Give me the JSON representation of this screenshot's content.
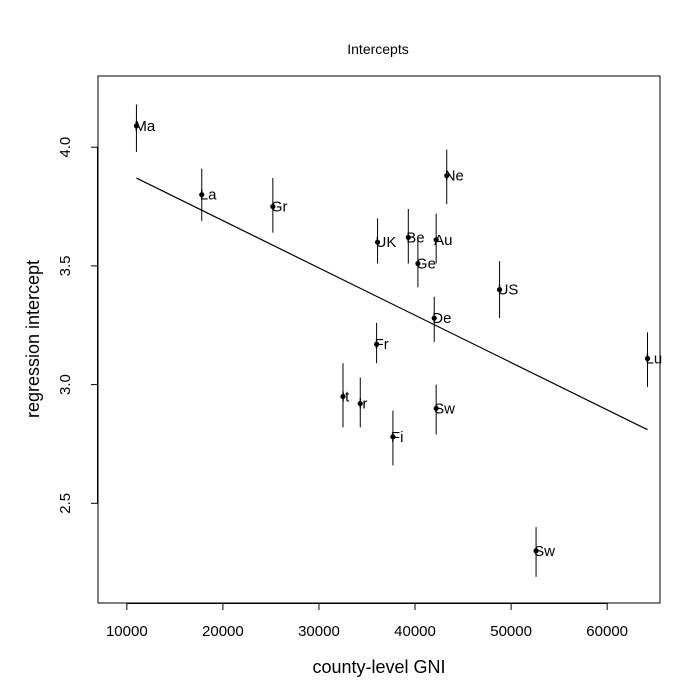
{
  "chart_data": {
    "type": "scatter",
    "title": "Intercepts",
    "xlabel": "county-level GNI",
    "ylabel": "regression intercept",
    "xlim": [
      7000,
      65500
    ],
    "ylim": [
      2.08,
      4.3
    ],
    "x_ticks": [
      10000,
      20000,
      30000,
      40000,
      50000,
      60000
    ],
    "y_ticks": [
      2.5,
      3.0,
      3.5,
      4.0
    ],
    "x_tick_labels": [
      "10000",
      "20000",
      "30000",
      "40000",
      "50000",
      "60000"
    ],
    "y_tick_labels": [
      "2.5",
      "3.0",
      "3.5",
      "4.0"
    ],
    "grid": false,
    "legend": "none",
    "points": [
      {
        "label": "Ma",
        "x": 11000,
        "y": 4.09,
        "lo": 3.98,
        "hi": 4.18
      },
      {
        "label": "La",
        "x": 17800,
        "y": 3.8,
        "lo": 3.69,
        "hi": 3.91
      },
      {
        "label": "Gr",
        "x": 25200,
        "y": 3.75,
        "lo": 3.64,
        "hi": 3.87
      },
      {
        "label": "UK",
        "x": 36100,
        "y": 3.6,
        "lo": 3.51,
        "hi": 3.7
      },
      {
        "label": "Be",
        "x": 39300,
        "y": 3.62,
        "lo": 3.51,
        "hi": 3.74
      },
      {
        "label": "Au",
        "x": 42200,
        "y": 3.61,
        "lo": 3.51,
        "hi": 3.72
      },
      {
        "label": "Ne",
        "x": 43300,
        "y": 3.88,
        "lo": 3.76,
        "hi": 3.99
      },
      {
        "label": "Ge",
        "x": 40300,
        "y": 3.51,
        "lo": 3.41,
        "hi": 3.62
      },
      {
        "label": "US",
        "x": 48800,
        "y": 3.4,
        "lo": 3.28,
        "hi": 3.52
      },
      {
        "label": "De",
        "x": 42000,
        "y": 3.28,
        "lo": 3.18,
        "hi": 3.37
      },
      {
        "label": "Fr",
        "x": 36000,
        "y": 3.17,
        "lo": 3.09,
        "hi": 3.26
      },
      {
        "label": "Lu",
        "x": 64200,
        "y": 3.11,
        "lo": 2.99,
        "hi": 3.22
      },
      {
        "label": "It",
        "x": 32500,
        "y": 2.95,
        "lo": 2.82,
        "hi": 3.09
      },
      {
        "label": "Ir",
        "x": 34300,
        "y": 2.92,
        "lo": 2.82,
        "hi": 3.03
      },
      {
        "label": "Sw",
        "x": 42200,
        "y": 2.9,
        "lo": 2.79,
        "hi": 3.0
      },
      {
        "label": "Fi",
        "x": 37700,
        "y": 2.78,
        "lo": 2.66,
        "hi": 2.89
      },
      {
        "label": "Sw",
        "x": 52600,
        "y": 2.3,
        "lo": 2.19,
        "hi": 2.4
      }
    ],
    "regression_line": {
      "x": [
        11000,
        64200
      ],
      "y": [
        3.87,
        2.81
      ]
    }
  }
}
